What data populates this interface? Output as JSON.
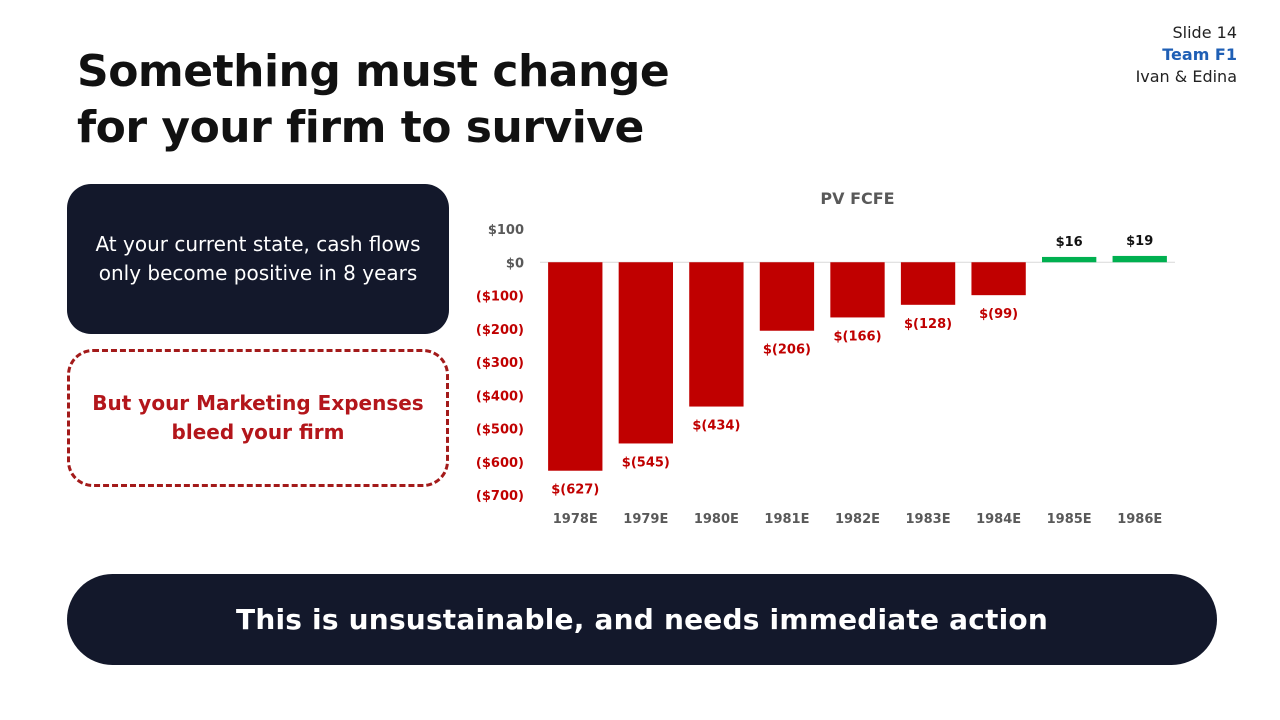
{
  "slide": {
    "title_lines": [
      "Something must change",
      "for your firm to survive"
    ],
    "slide_number": "Slide 14",
    "team": "Team F1",
    "authors": "Ivan & Edina"
  },
  "callouts": {
    "current_state": "At your current state, cash flows\nonly become positive in 8 years",
    "marketing": "But your Marketing Expenses\nbleed your firm"
  },
  "banner": "This is unsustainable, and needs immediate action",
  "colors": {
    "negative": "#c00000",
    "positive": "#00b050",
    "dark": "#13182b",
    "axis_text": "#595959"
  },
  "chart_data": {
    "type": "bar",
    "title": "PV FCFE",
    "categories": [
      "1978E",
      "1979E",
      "1980E",
      "1981E",
      "1982E",
      "1983E",
      "1984E",
      "1985E",
      "1986E"
    ],
    "values": [
      -627,
      -545,
      -434,
      -206,
      -166,
      -128,
      -99,
      16,
      19
    ],
    "data_labels": [
      "$(627)",
      "$(545)",
      "$(434)",
      "$(206)",
      "$(166)",
      "$(128)",
      "$(99)",
      "$16",
      "$19"
    ],
    "ylim": [
      -700,
      100
    ],
    "yticks": [
      100,
      0,
      -100,
      -200,
      -300,
      -400,
      -500,
      -600,
      -700
    ],
    "ytick_labels": [
      "$100",
      "$0",
      "($100)",
      "($200)",
      "($300)",
      "($400)",
      "($500)",
      "($600)",
      "($700)"
    ],
    "xlabel": "",
    "ylabel": "",
    "grid": false,
    "legend": "none"
  }
}
